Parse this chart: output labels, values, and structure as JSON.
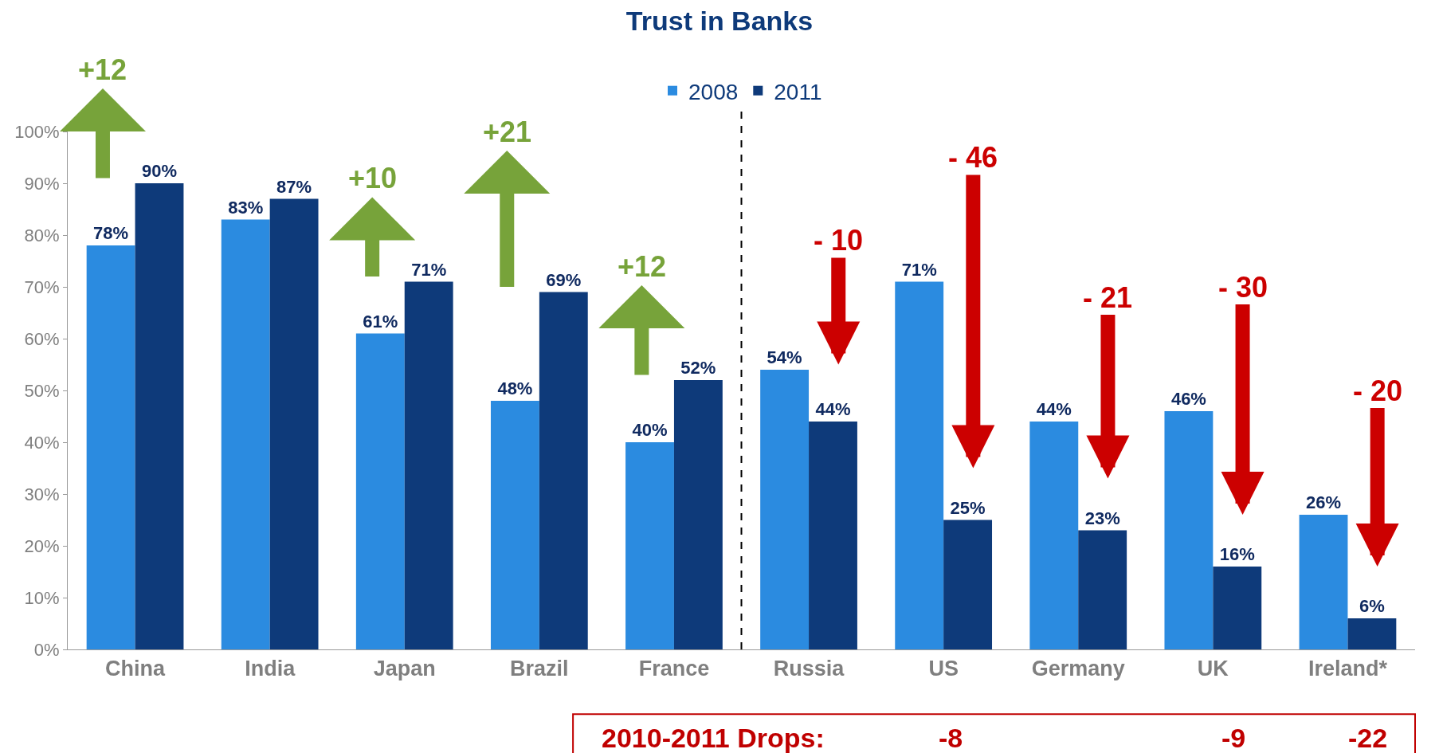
{
  "chart_data": {
    "type": "bar",
    "title": "Trust in Banks",
    "categories": [
      "China",
      "India",
      "Japan",
      "Brazil",
      "France",
      "Russia",
      "US",
      "Germany",
      "UK",
      "Ireland*"
    ],
    "series": [
      {
        "name": "2008",
        "color": "#2b8be0",
        "values": [
          78,
          83,
          61,
          48,
          40,
          54,
          71,
          44,
          46,
          26
        ],
        "value_labels": [
          "78%",
          "83%",
          "61%",
          "48%",
          "40%",
          "54%",
          "71%",
          "44%",
          "46%",
          "26%"
        ]
      },
      {
        "name": "2011",
        "color": "#0e3a7a",
        "values": [
          90,
          87,
          71,
          69,
          52,
          44,
          25,
          23,
          16,
          6
        ],
        "value_labels": [
          "90%",
          "87%",
          "71%",
          "69%",
          "52%",
          "44%",
          "25%",
          "23%",
          "16%",
          "6%"
        ]
      }
    ],
    "ylim": [
      0,
      100
    ],
    "yticks": [
      {
        "value": 0,
        "label": "0%"
      },
      {
        "value": 10,
        "label": "10%"
      },
      {
        "value": 20,
        "label": "20%"
      },
      {
        "value": 30,
        "label": "30%"
      },
      {
        "value": 40,
        "label": "40%"
      },
      {
        "value": 50,
        "label": "50%"
      },
      {
        "value": 60,
        "label": "60%"
      },
      {
        "value": 70,
        "label": "70%"
      },
      {
        "value": 80,
        "label": "80%"
      },
      {
        "value": 90,
        "label": "90%"
      },
      {
        "value": 100,
        "label": "100%"
      }
    ],
    "legend": "top",
    "annotations": [
      "+12",
      "+10",
      "+21",
      "+12",
      "- 10",
      "- 46",
      "- 21",
      "- 30",
      "- 20",
      "2010-2011 Drops:",
      "-8",
      "-9",
      "-22"
    ]
  }
}
